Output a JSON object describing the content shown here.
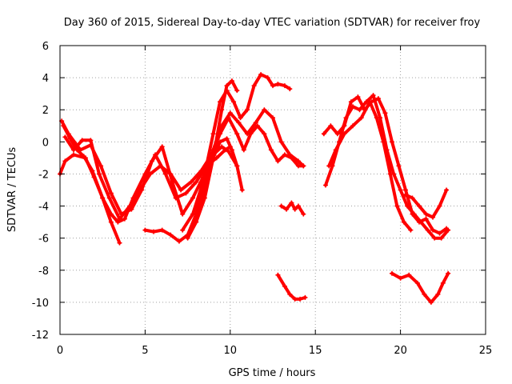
{
  "chart_data": {
    "type": "line",
    "title": "Day 360 of 2015, Sidereal Day-to-day VTEC variation (SDTVAR) for receiver froy",
    "xlabel": "GPS time / hours",
    "ylabel": "SDTVAR / TECUs",
    "xlim": [
      0,
      25
    ],
    "ylim": [
      -12,
      6
    ],
    "xticks": [
      0,
      5,
      10,
      15,
      20,
      25
    ],
    "yticks": [
      -12,
      -10,
      -8,
      -6,
      -4,
      -2,
      0,
      2,
      4,
      6
    ],
    "grid": true,
    "color": "#ff0000",
    "series": [
      {
        "name": "s1",
        "x": [
          0,
          0.3,
          0.8,
          1.5,
          2.0,
          2.5,
          3.0,
          3.4,
          3.8,
          4.3,
          5.0,
          5.6,
          6.2,
          6.8,
          7.4,
          8.0,
          8.6,
          9.2,
          9.7,
          10.0
        ],
        "y": [
          -2.0,
          -1.2,
          -0.8,
          -1.0,
          -2.2,
          -3.5,
          -4.5,
          -5.0,
          -4.8,
          -3.5,
          -2.0,
          -0.8,
          -2.0,
          -3.5,
          -3.2,
          -2.5,
          -1.5,
          -1.0,
          -0.5,
          -0.3
        ]
      },
      {
        "name": "s2",
        "x": [
          0.1,
          0.5,
          1.2,
          1.8,
          2.4,
          3.0,
          3.6,
          4.2,
          4.8,
          5.4,
          6.0,
          6.6,
          7.2,
          7.8,
          8.4,
          9.0,
          9.5,
          9.9,
          10.4
        ],
        "y": [
          1.3,
          0.5,
          -0.5,
          -0.2,
          -1.5,
          -3.2,
          -4.5,
          -4.2,
          -3.0,
          -1.2,
          -0.3,
          -2.5,
          -4.5,
          -3.5,
          -2.2,
          -0.8,
          -0.3,
          -0.6,
          -1.5
        ]
      },
      {
        "name": "s3",
        "x": [
          0.2,
          0.6,
          1.0,
          1.4,
          1.9,
          2.5,
          3.0,
          3.5
        ],
        "y": [
          1.0,
          0.2,
          -0.5,
          -0.9,
          -1.8,
          -3.5,
          -5.0,
          -6.3
        ]
      },
      {
        "name": "s4",
        "x": [
          0.3,
          0.8,
          1.3,
          1.8,
          2.3,
          2.9,
          3.5,
          4.1,
          4.7,
          5.3,
          5.9,
          6.5,
          7.1,
          7.7,
          8.3,
          8.9,
          9.4,
          9.9,
          10.4,
          10.8,
          11.2,
          11.6,
          12.0,
          12.4,
          12.8,
          13.2,
          13.6,
          14.0,
          14.3
        ],
        "y": [
          0.3,
          -0.5,
          0.1,
          0.1,
          -2.0,
          -3.5,
          -4.8,
          -4.0,
          -3.0,
          -2.0,
          -1.5,
          -2.0,
          -3.0,
          -2.5,
          -1.8,
          -0.8,
          0.5,
          1.5,
          0.5,
          -0.5,
          0.5,
          1.0,
          0.5,
          -0.5,
          -1.2,
          -0.8,
          -1.0,
          -1.5,
          -1.5
        ]
      },
      {
        "name": "s5",
        "x": [
          5.0,
          5.5,
          6.0,
          6.5,
          7.0,
          7.5,
          8.0,
          8.5,
          9.0,
          9.5,
          10.0,
          10.5,
          11.0,
          11.5,
          12.0,
          12.5,
          13.0,
          13.5,
          14.0,
          14.3
        ],
        "y": [
          -5.5,
          -5.6,
          -5.5,
          -5.8,
          -6.2,
          -5.8,
          -4.5,
          -2.5,
          -0.5,
          1.0,
          1.8,
          1.2,
          0.5,
          1.2,
          2.0,
          1.5,
          0.0,
          -0.8,
          -1.2,
          -1.5
        ]
      },
      {
        "name": "s6",
        "x": [
          7.2,
          7.8,
          8.4,
          9.0,
          9.4,
          9.8,
          10.2,
          10.6,
          11.0,
          11.4,
          11.8,
          12.2,
          12.5,
          12.8,
          13.2,
          13.5
        ],
        "y": [
          -5.5,
          -4.5,
          -2.5,
          0.5,
          2.5,
          3.2,
          2.5,
          1.5,
          2.0,
          3.5,
          4.2,
          4.0,
          3.5,
          3.6,
          3.5,
          3.3
        ]
      },
      {
        "name": "s7",
        "x": [
          7.5,
          8.0,
          8.5,
          9.0,
          9.5,
          9.8,
          10.1,
          10.4
        ],
        "y": [
          -6.0,
          -5.0,
          -3.5,
          -1.0,
          2.0,
          3.5,
          3.8,
          3.2
        ]
      },
      {
        "name": "s8",
        "x": [
          8.0,
          8.5,
          9.0,
          9.4,
          9.8,
          10.1,
          10.4,
          10.7
        ],
        "y": [
          -4.5,
          -3.0,
          -1.0,
          0.0,
          0.2,
          -0.5,
          -1.5,
          -3.0
        ]
      },
      {
        "name": "s9",
        "x": [
          13.0,
          13.3,
          13.6,
          13.8,
          14.0,
          14.3
        ],
        "y": [
          -4.0,
          -4.2,
          -3.8,
          -4.2,
          -4.0,
          -4.5
        ]
      },
      {
        "name": "s10",
        "x": [
          12.8,
          13.2,
          13.5,
          13.8,
          14.1,
          14.4
        ],
        "y": [
          -8.3,
          -9.0,
          -9.5,
          -9.8,
          -9.8,
          -9.7
        ]
      },
      {
        "name": "s11",
        "x": [
          15.5,
          15.9,
          16.3,
          16.7,
          17.1,
          17.5,
          17.9,
          18.3,
          18.7,
          19.1,
          19.5,
          19.9,
          20.3,
          20.7,
          21.1,
          21.5,
          21.9,
          22.3,
          22.7
        ],
        "y": [
          0.5,
          1.0,
          0.5,
          1.0,
          2.5,
          2.8,
          2.0,
          2.5,
          2.7,
          1.8,
          0.0,
          -1.5,
          -3.0,
          -4.5,
          -5.0,
          -4.8,
          -5.5,
          -5.7,
          -5.4
        ]
      },
      {
        "name": "s12",
        "x": [
          15.6,
          16.0,
          16.4,
          16.8,
          17.2,
          17.6,
          18.0,
          18.4,
          18.8,
          19.2,
          19.6,
          20.0,
          20.4,
          20.8,
          21.2,
          21.6,
          22.0,
          22.4,
          22.8
        ],
        "y": [
          -2.7,
          -1.5,
          0.0,
          1.5,
          2.2,
          2.0,
          2.5,
          2.9,
          1.5,
          -0.5,
          -2.0,
          -3.0,
          -4.0,
          -4.5,
          -5.0,
          -5.5,
          -6.0,
          -6.0,
          -5.5
        ]
      },
      {
        "name": "s13",
        "x": [
          15.8,
          16.2,
          16.7,
          17.2,
          17.7,
          18.2,
          18.6,
          19.0,
          19.4,
          19.8,
          20.2,
          20.6
        ],
        "y": [
          -1.5,
          -0.5,
          0.5,
          1.0,
          1.5,
          2.5,
          1.5,
          0.0,
          -2.0,
          -4.0,
          -5.0,
          -5.5
        ]
      },
      {
        "name": "s14",
        "x": [
          19.5,
          20.0,
          20.5,
          21.0,
          21.4,
          21.8,
          22.2,
          22.5,
          22.8
        ],
        "y": [
          -8.2,
          -8.5,
          -8.3,
          -8.8,
          -9.5,
          -10.0,
          -9.5,
          -8.8,
          -8.2
        ]
      },
      {
        "name": "s15",
        "x": [
          20.3,
          20.7,
          21.1,
          21.5,
          21.9,
          22.3,
          22.7
        ],
        "y": [
          -3.3,
          -3.5,
          -4.0,
          -4.5,
          -4.7,
          -4.0,
          -3.0
        ]
      }
    ]
  }
}
